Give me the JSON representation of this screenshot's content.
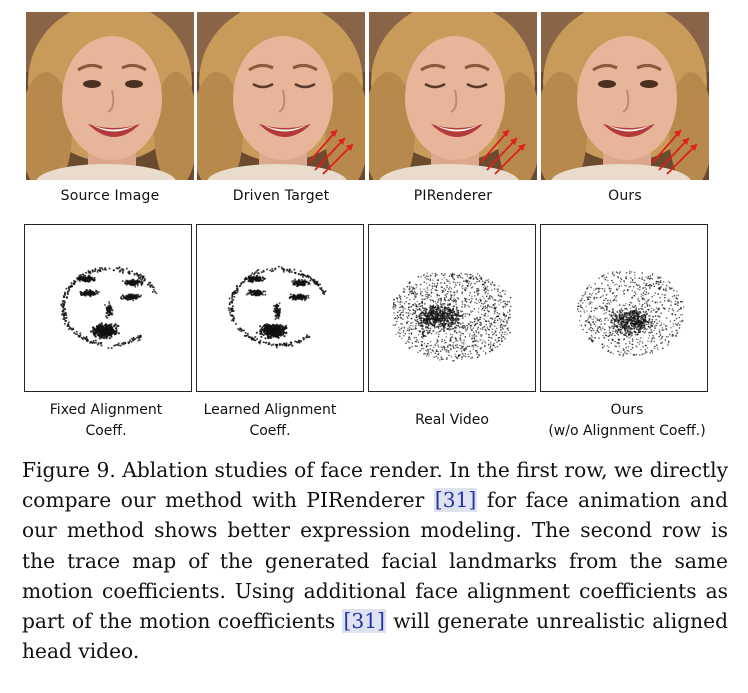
{
  "row1_captions": [
    "Source Image",
    "Driven Target",
    "PIRenderer",
    "Ours"
  ],
  "row2_captions": [
    {
      "l1": "Fixed Alignment",
      "l2": "Coeff."
    },
    {
      "l1": "Learned Alignment",
      "l2": "Coeff."
    },
    {
      "l1": "Real Video",
      "l2": ""
    },
    {
      "l1": "Ours",
      "l2": "(w/o Alignment Coeff.)"
    }
  ],
  "caption": {
    "p1": "Figure 9. Ablation studies of face render. In the first row, we directly compare our method with PIRenderer ",
    "cite1": "[31]",
    "p2": " for face animation and our method shows better expression modeling. The second row is the trace map of the generated facial landmarks from the same motion coefficients. Using additional face alignment coefficients as part of the motion coefficients  ",
    "cite2": "[31]",
    "p3": " will generate unrealistic aligned head video."
  },
  "colors": {
    "arrow": "#e0201a",
    "hair": "#c99b5a",
    "skin": "#e6b59a",
    "background": "#6b4a2f"
  }
}
